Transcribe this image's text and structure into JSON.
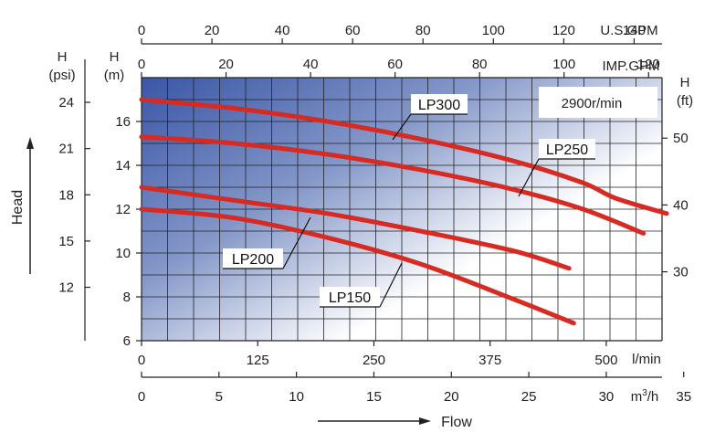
{
  "chart_data": {
    "type": "line",
    "speed_label": "2900r/min",
    "x_unit": "l/min",
    "y_unit_label": "H",
    "y_unit_sub": "(m)",
    "xlim": [
      0,
      560
    ],
    "ylim": [
      6,
      18
    ],
    "xticks": [
      0,
      125,
      250,
      375,
      500
    ],
    "yticks": [
      6,
      8,
      10,
      12,
      14,
      16
    ],
    "secondary_axes": {
      "us_gpm": {
        "label": "U.S.GPM",
        "ticks": [
          0,
          20,
          40,
          60,
          80,
          100,
          120,
          140
        ]
      },
      "imp_gpm": {
        "label": "IMP.GPM",
        "ticks": [
          0,
          20,
          40,
          60,
          80,
          100,
          120
        ]
      },
      "m3h": {
        "label": "m³/h",
        "unit_base": "m",
        "unit_sup": "3",
        "unit_suffix": "/h",
        "ticks": [
          0,
          5,
          10,
          15,
          20,
          25,
          30,
          35
        ]
      },
      "psi": {
        "label_top": "H",
        "label_sub": "(psi)",
        "ticks": [
          12,
          15,
          18,
          21,
          24
        ]
      },
      "ft": {
        "label_top": "H",
        "label_sub": "(ft)",
        "ticks": [
          30,
          40,
          50
        ]
      }
    },
    "axis_titles": {
      "y": "Head",
      "x": "Flow"
    },
    "series": [
      {
        "name": "LP300",
        "x": [
          0,
          100,
          200,
          300,
          400,
          475,
          510,
          565
        ],
        "y": [
          17.0,
          16.6,
          16.0,
          15.2,
          14.2,
          13.2,
          12.5,
          11.8
        ]
      },
      {
        "name": "LP250",
        "x": [
          0,
          100,
          200,
          300,
          400,
          475,
          540
        ],
        "y": [
          15.3,
          15.0,
          14.5,
          13.8,
          12.9,
          12.0,
          10.9
        ]
      },
      {
        "name": "LP200",
        "x": [
          0,
          100,
          200,
          300,
          400,
          460
        ],
        "y": [
          13.0,
          12.4,
          11.8,
          11.0,
          10.1,
          9.3
        ]
      },
      {
        "name": "LP150",
        "x": [
          0,
          100,
          200,
          300,
          400,
          465
        ],
        "y": [
          12.0,
          11.6,
          10.7,
          9.5,
          7.9,
          6.8
        ]
      }
    ]
  }
}
